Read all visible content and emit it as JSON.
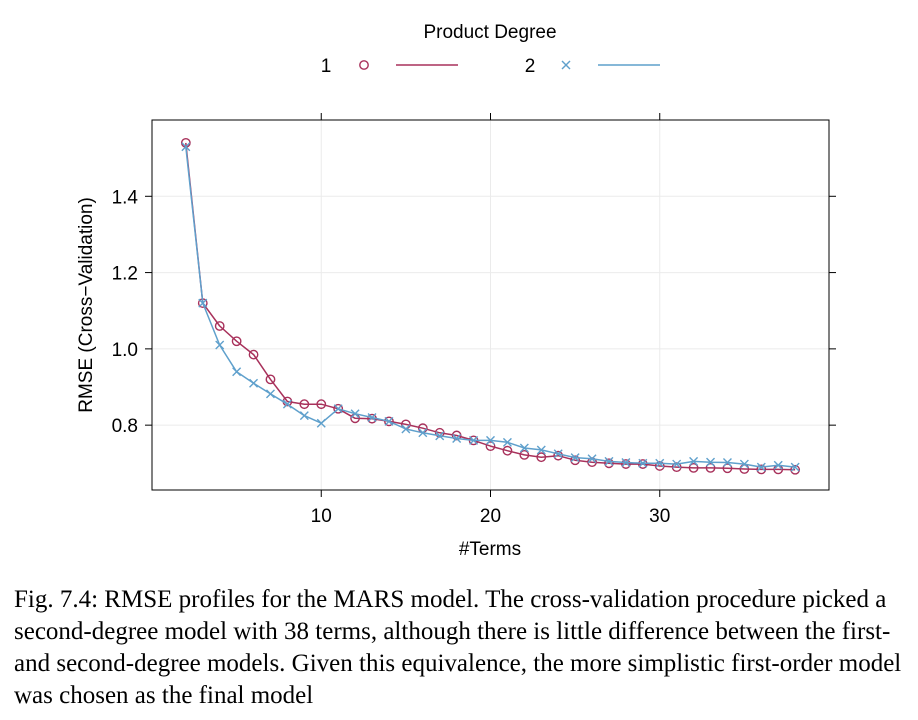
{
  "chart_data": {
    "type": "line",
    "legend": {
      "title": "Product Degree",
      "placement": "top"
    },
    "xlabel": "#Terms",
    "ylabel": "RMSE (Cross−Validation)",
    "xlim": [
      0,
      40
    ],
    "ylim": [
      0.63,
      1.6
    ],
    "xticks": [
      10,
      20,
      30
    ],
    "xtick_labels": [
      "10",
      "20",
      "30"
    ],
    "yticks": [
      0.8,
      1.0,
      1.2,
      1.4
    ],
    "ytick_labels": [
      "0.8",
      "1.0",
      "1.2",
      "1.4"
    ],
    "grid": true,
    "series": [
      {
        "name": "1",
        "marker": "circle",
        "color": "#a8315b",
        "x": [
          2,
          3,
          4,
          5,
          6,
          7,
          8,
          9,
          10,
          11,
          12,
          13,
          14,
          15,
          16,
          17,
          18,
          19,
          20,
          21,
          22,
          23,
          24,
          25,
          26,
          27,
          28,
          29,
          30,
          31,
          32,
          33,
          34,
          35,
          36,
          37,
          38
        ],
        "y": [
          1.54,
          1.12,
          1.06,
          1.02,
          0.985,
          0.92,
          0.862,
          0.855,
          0.855,
          0.843,
          0.818,
          0.817,
          0.81,
          0.802,
          0.792,
          0.78,
          0.773,
          0.76,
          0.745,
          0.733,
          0.722,
          0.716,
          0.72,
          0.708,
          0.703,
          0.7,
          0.698,
          0.698,
          0.693,
          0.69,
          0.688,
          0.688,
          0.687,
          0.685,
          0.684,
          0.684,
          0.683
        ]
      },
      {
        "name": "2",
        "marker": "x",
        "color": "#5fa0cc",
        "x": [
          2,
          3,
          4,
          5,
          6,
          7,
          8,
          9,
          10,
          11,
          12,
          13,
          14,
          15,
          16,
          17,
          18,
          19,
          20,
          21,
          22,
          23,
          24,
          25,
          26,
          27,
          28,
          29,
          30,
          31,
          32,
          33,
          34,
          35,
          36,
          37,
          38
        ],
        "y": [
          1.53,
          1.12,
          1.01,
          0.94,
          0.91,
          0.882,
          0.855,
          0.825,
          0.805,
          0.843,
          0.83,
          0.82,
          0.81,
          0.79,
          0.78,
          0.772,
          0.765,
          0.76,
          0.76,
          0.755,
          0.74,
          0.735,
          0.725,
          0.715,
          0.712,
          0.705,
          0.702,
          0.7,
          0.7,
          0.698,
          0.705,
          0.703,
          0.702,
          0.698,
          0.69,
          0.695,
          0.69
        ]
      }
    ]
  },
  "caption": "Fig. 7.4: RMSE profiles for the MARS model. The cross-validation procedure picked a second-degree model with 38 terms, although there is little difference between the first- and second-degree models. Given this equivalence, the more simplistic first-order model was chosen as the final model"
}
